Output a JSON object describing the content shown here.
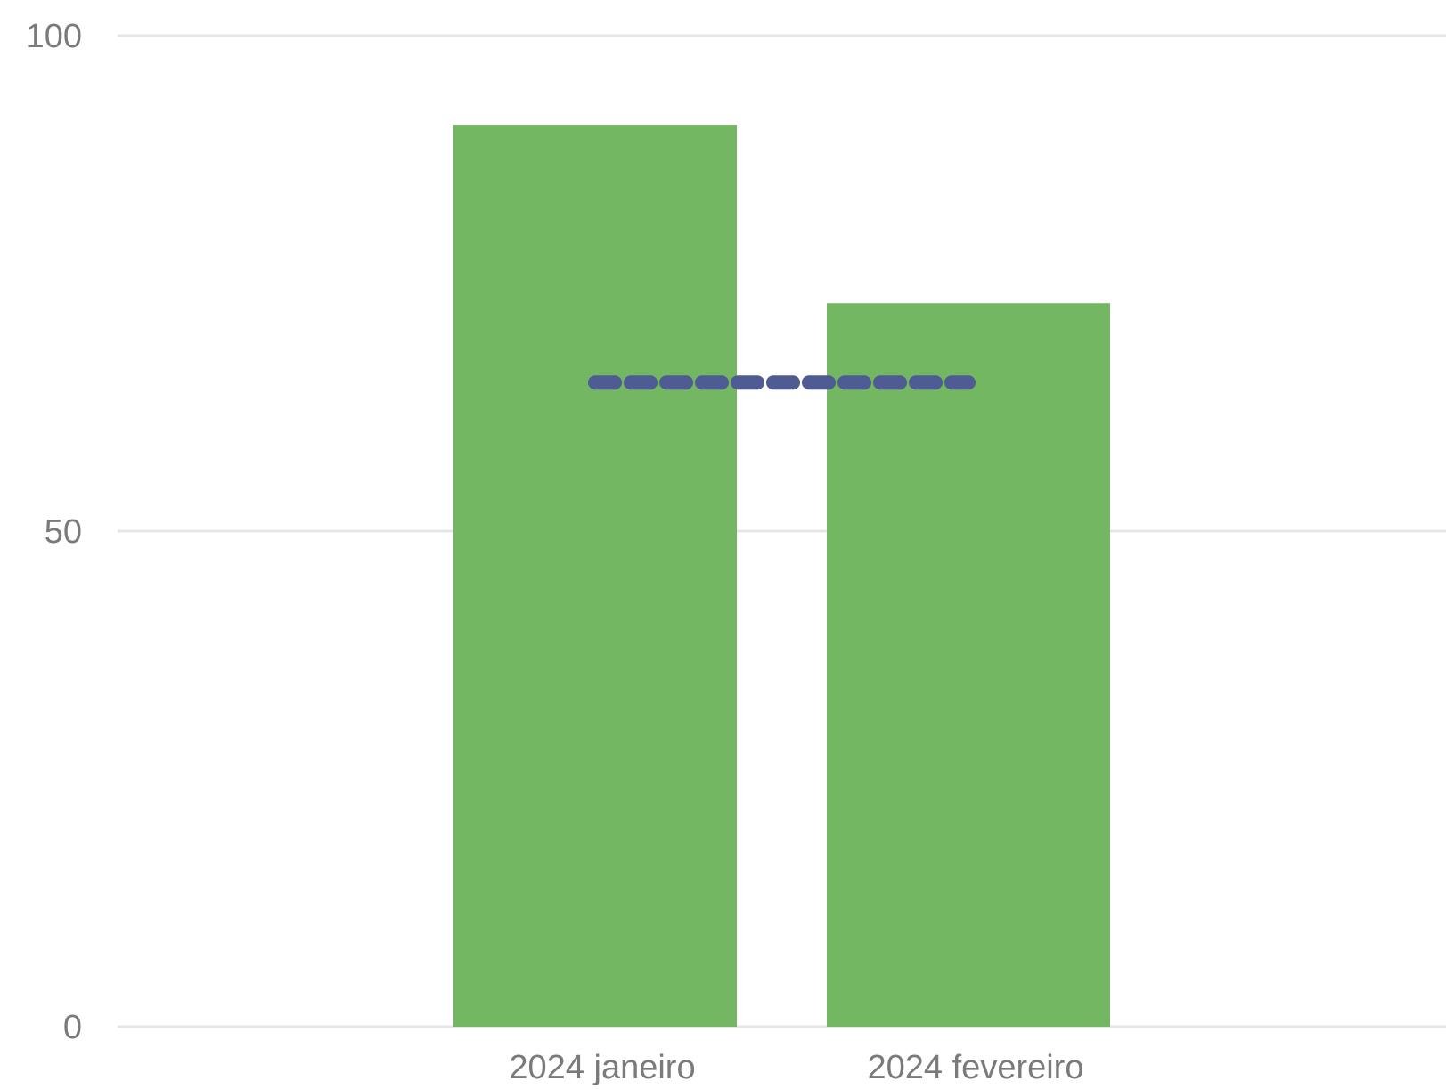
{
  "chart_data": {
    "type": "bar",
    "categories": [
      "2024 janeiro",
      "2024 fevereiro"
    ],
    "series": [
      {
        "values": [
          91,
          73
        ],
        "color": "#74b762",
        "kind": "bar"
      },
      {
        "values": [
          65,
          65
        ],
        "color": "#4f5b93",
        "kind": "line",
        "style": "dashed"
      }
    ],
    "yticks": [
      0,
      50,
      100
    ],
    "ylim": [
      0,
      100
    ],
    "grid": true,
    "title": "",
    "xlabel": "",
    "ylabel": ""
  }
}
